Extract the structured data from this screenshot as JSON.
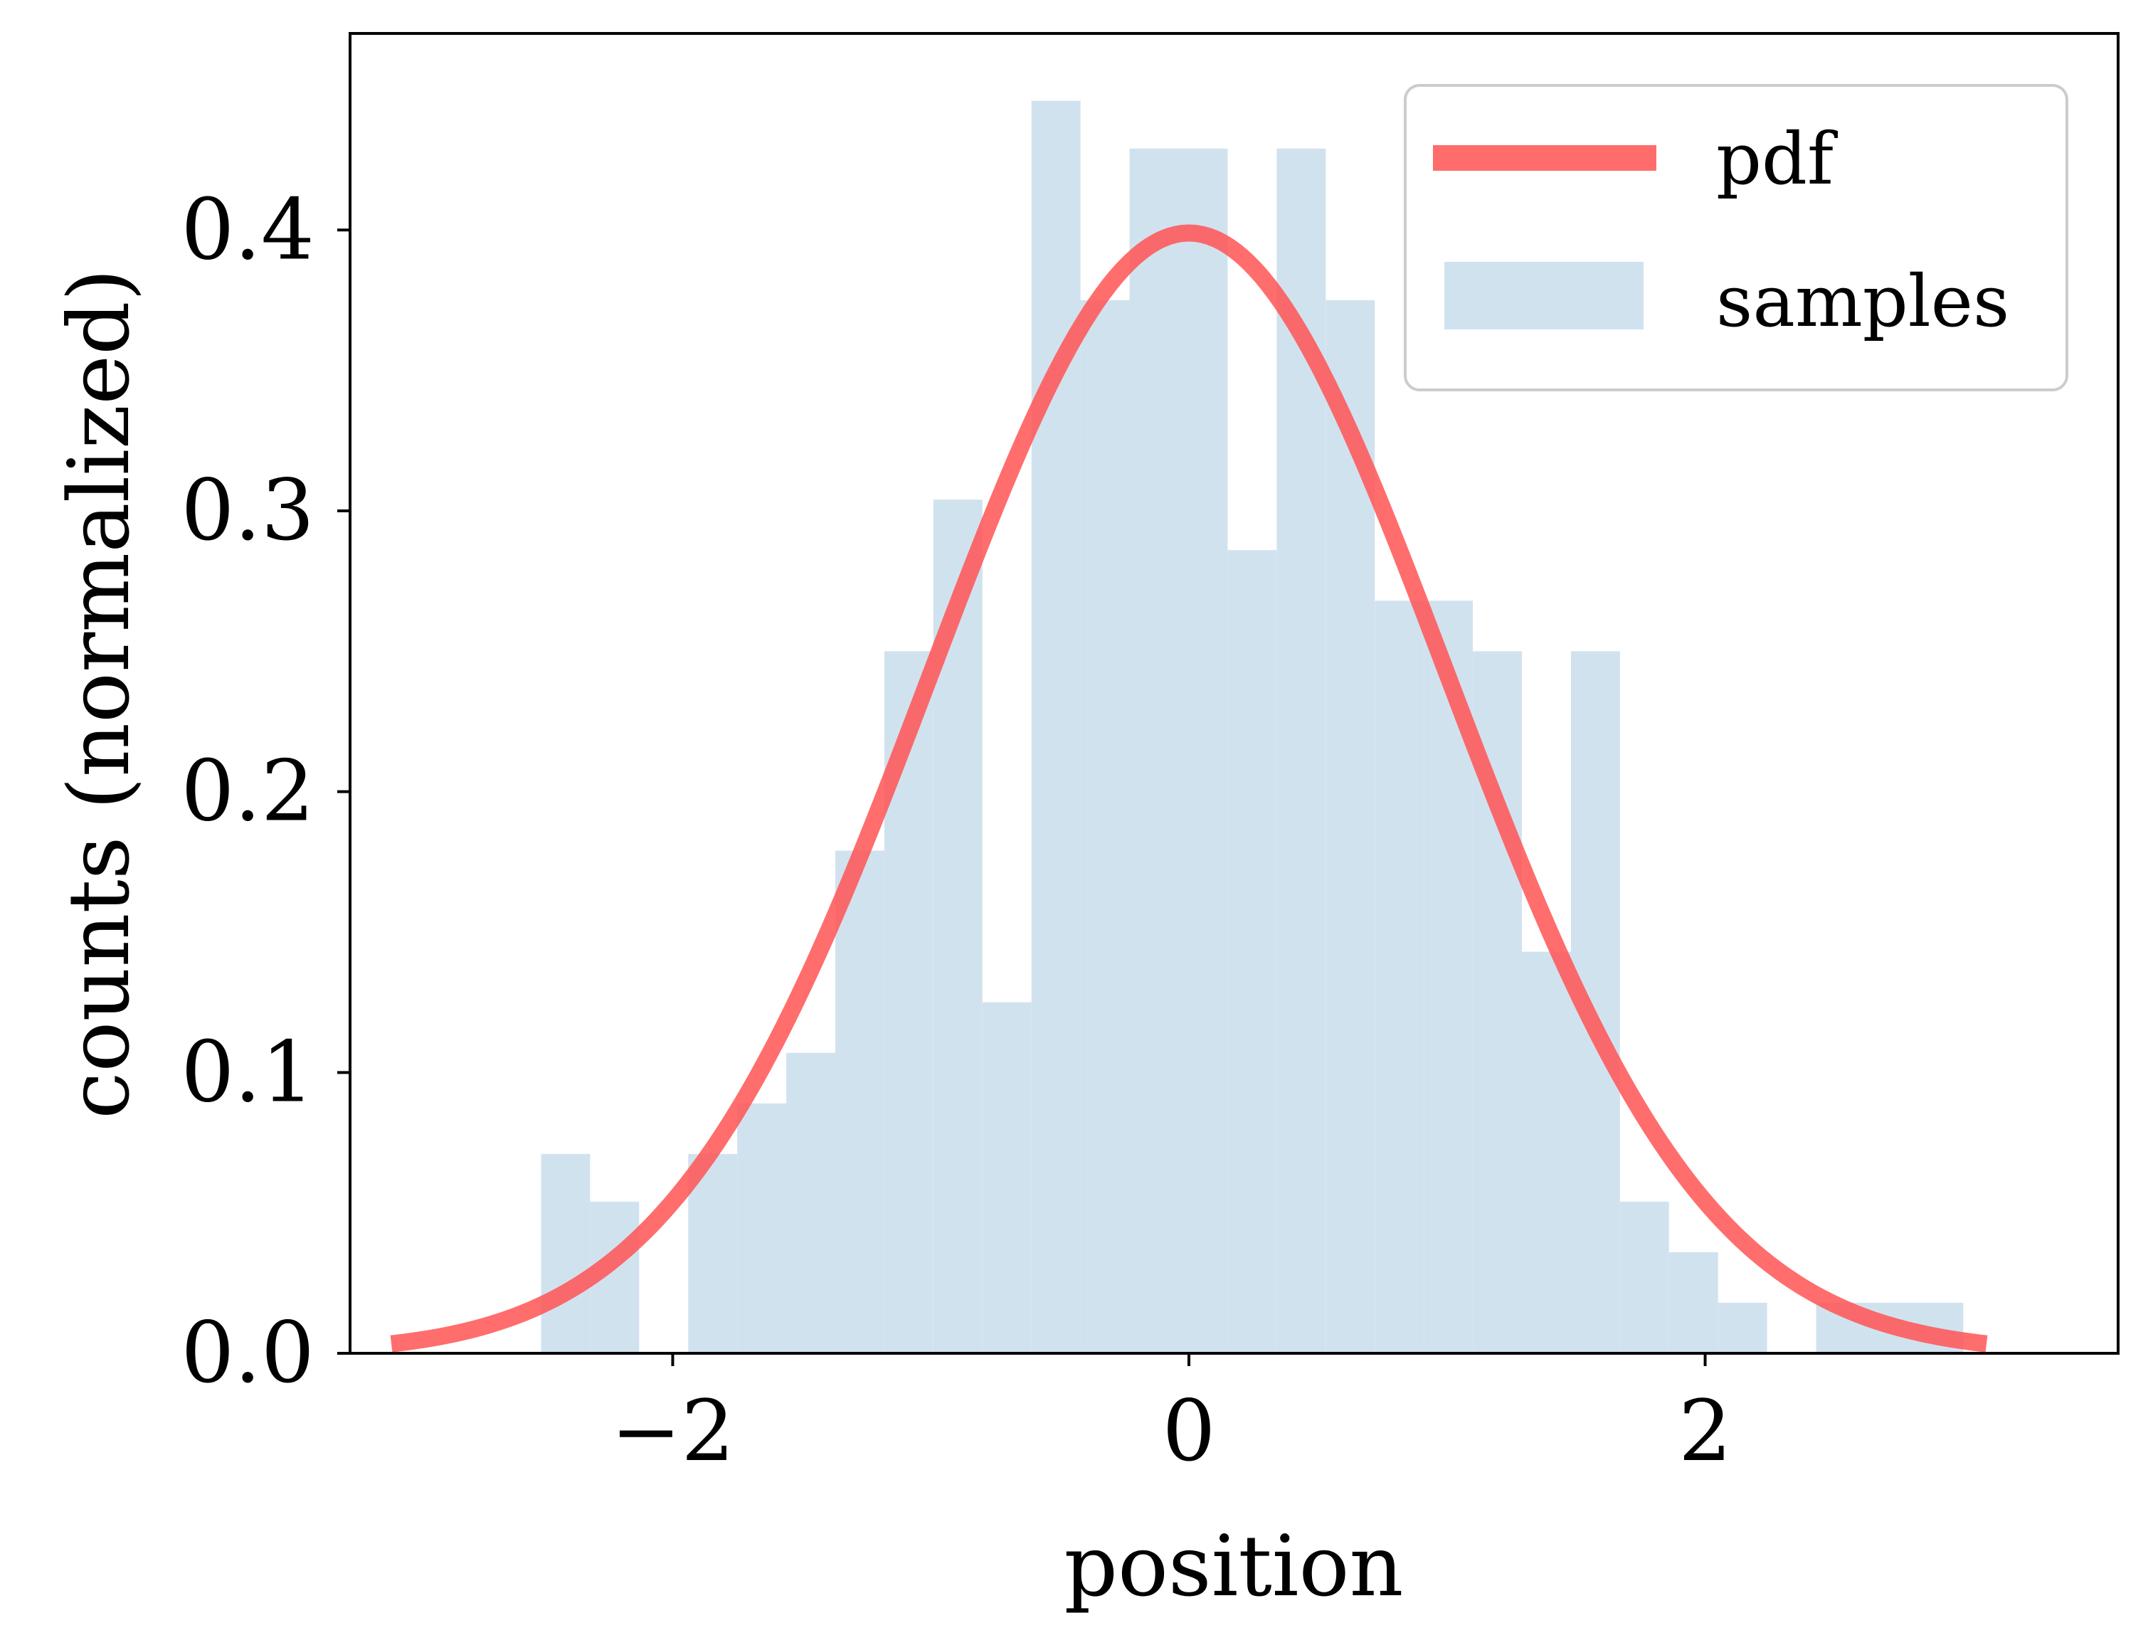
{
  "chart_data": {
    "type": "bar",
    "title": "",
    "xlabel": "position",
    "ylabel": "counts (normalized)",
    "xlim": [
      -3.25,
      3.6
    ],
    "ylim": [
      0.0,
      0.47
    ],
    "xticks": [
      -2,
      0,
      2
    ],
    "xtick_labels": [
      "−2",
      "0",
      "2"
    ],
    "yticks": [
      0.0,
      0.1,
      0.2,
      0.3,
      0.4
    ],
    "ytick_labels": [
      "0.0",
      "0.1",
      "0.2",
      "0.3",
      "0.4"
    ],
    "grid": false,
    "legend_position": "top-right",
    "histogram": {
      "name": "samples",
      "color": "#d1e2ef",
      "bin_edges": [
        -2.51,
        -2.32,
        -2.13,
        -1.94,
        -1.75,
        -1.56,
        -1.37,
        -1.18,
        -0.99,
        -0.8,
        -0.61,
        -0.42,
        -0.23,
        -0.04,
        0.15,
        0.34,
        0.53,
        0.72,
        0.91,
        1.1,
        1.29,
        1.48,
        1.67,
        1.86,
        2.05,
        2.24,
        2.43,
        2.62,
        2.81,
        3.0
      ],
      "values": [
        0.071,
        0.054,
        0.0,
        0.071,
        0.089,
        0.107,
        0.179,
        0.25,
        0.304,
        0.125,
        0.446,
        0.375,
        0.429,
        0.429,
        0.286,
        0.429,
        0.375,
        0.268,
        0.268,
        0.25,
        0.143,
        0.25,
        0.054,
        0.036,
        0.018,
        0.0,
        0.018,
        0.018,
        0.018
      ]
    },
    "series": [
      {
        "name": "pdf",
        "color": "#ff5555",
        "type": "line",
        "function": "standard normal density",
        "x_range": [
          -3.09,
          3.09
        ]
      }
    ]
  }
}
